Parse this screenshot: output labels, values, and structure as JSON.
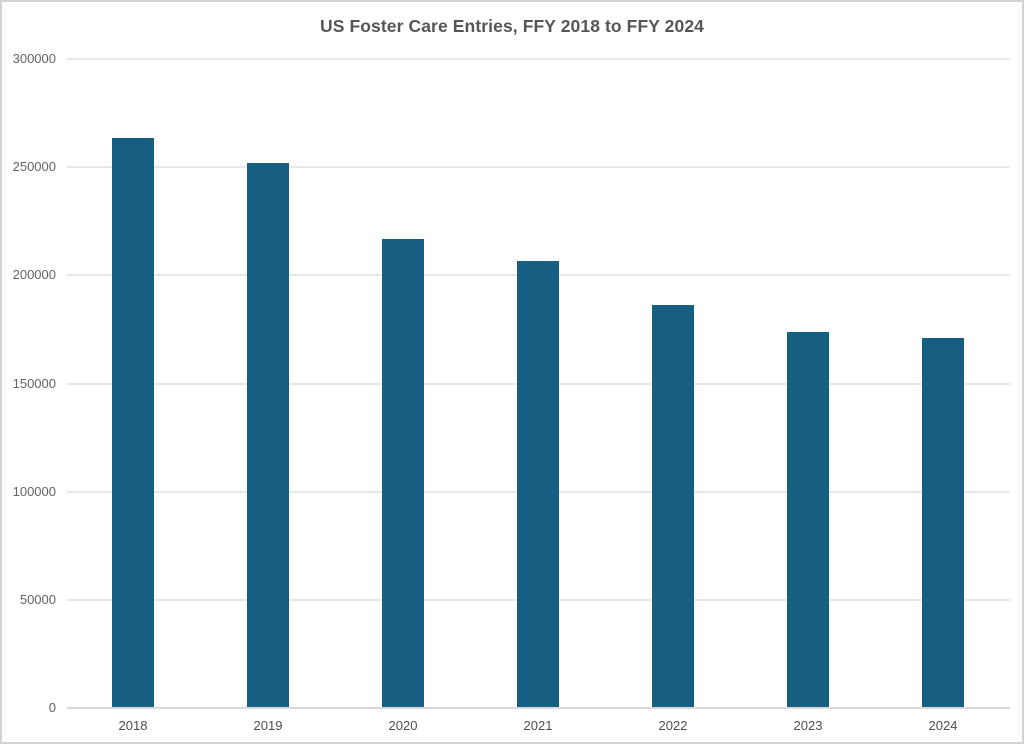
{
  "title": "US Foster Care Entries, FFY 2018 to FFY 2024",
  "colors": {
    "bar": "#165E82",
    "grid": "#E7E7E7",
    "baseline": "#D8D8D8",
    "title_text": "#565656",
    "axis_text": "#646464",
    "border": "#D2D2D2",
    "background": "#FFFFFF"
  },
  "chart_data": {
    "type": "bar",
    "title": "US Foster Care Entries, FFY 2018 to FFY 2024",
    "categories": [
      "2018",
      "2019",
      "2020",
      "2021",
      "2022",
      "2023",
      "2024"
    ],
    "values": [
      263400,
      252000,
      216800,
      206800,
      186500,
      174000,
      171000
    ],
    "xlabel": "",
    "ylabel": "",
    "ylim": [
      0,
      300000
    ],
    "ytick_interval": 50000,
    "ytick_values": [
      0,
      50000,
      100000,
      150000,
      200000,
      250000,
      300000
    ],
    "ytick_labels": [
      "0",
      "50000",
      "100000",
      "150000",
      "200000",
      "250000",
      "300000"
    ],
    "grid": "horizontal-only",
    "legend": "none",
    "bar_color": "#165E82"
  }
}
